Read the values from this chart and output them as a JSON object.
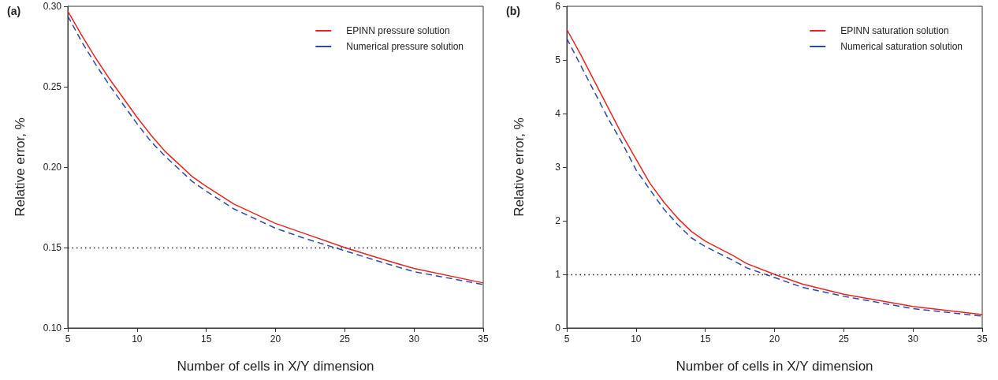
{
  "chart_data": [
    {
      "type": "line",
      "title": "(a)",
      "xlabel": "Number of cells in X/Y dimension",
      "ylabel": "Relative error, %",
      "xlim": [
        5,
        35
      ],
      "xticks": [
        5,
        10,
        15,
        20,
        25,
        30,
        35
      ],
      "ylim": [
        0.1,
        0.3
      ],
      "yticks": [
        {
          "value": 0.1,
          "label": "0.10"
        },
        0.15,
        {
          "value": 0.2,
          "label": "0.20"
        },
        0.25,
        {
          "value": 0.3,
          "label": "0.30"
        }
      ],
      "grid": false,
      "legend": "top right",
      "marker": "none",
      "x": [
        5,
        6,
        7,
        8,
        9,
        10,
        11,
        12,
        13,
        14,
        15,
        17,
        20,
        22,
        25,
        28,
        30,
        35
      ],
      "series": [
        {
          "name": "EPINN pressure solution",
          "color": "#e8251e",
          "line_style": "solid",
          "values": [
            0.297,
            0.282,
            0.268,
            0.255,
            0.243,
            0.231,
            0.22,
            0.21,
            0.202,
            0.194,
            0.188,
            0.177,
            0.165,
            0.159,
            0.15,
            0.142,
            0.137,
            0.128
          ]
        },
        {
          "name": "Numerical pressure solution",
          "color": "#2b4aa8",
          "line_style": "dashed",
          "values": [
            0.294,
            0.278,
            0.264,
            0.251,
            0.239,
            0.227,
            0.216,
            0.207,
            0.199,
            0.191,
            0.185,
            0.174,
            0.162,
            0.156,
            0.148,
            0.14,
            0.135,
            0.127
          ]
        }
      ],
      "ref_lines": [
        {
          "axis": "y",
          "value": 0.15,
          "color": "#222222",
          "line_style": "dotted"
        }
      ]
    },
    {
      "type": "line",
      "title": "(b)",
      "xlabel": "Number of cells in X/Y dimension",
      "ylabel": "Relative error, %",
      "xlim": [
        5,
        35
      ],
      "xticks": [
        5,
        10,
        15,
        20,
        25,
        30,
        35
      ],
      "ylim": [
        0,
        6
      ],
      "yticks": [
        0,
        1,
        2,
        3,
        4,
        5,
        6
      ],
      "grid": false,
      "legend": "top right",
      "marker": "none",
      "x": [
        5,
        6,
        7,
        8,
        9,
        10,
        11,
        12,
        13,
        14,
        15,
        17,
        18,
        20,
        22,
        25,
        30,
        35
      ],
      "series": [
        {
          "name": "EPINN saturation solution",
          "color": "#e8251e",
          "line_style": "solid",
          "values": [
            5.57,
            5.1,
            4.6,
            4.1,
            3.6,
            3.15,
            2.7,
            2.35,
            2.05,
            1.8,
            1.62,
            1.35,
            1.2,
            1.0,
            0.82,
            0.63,
            0.4,
            0.25
          ]
        },
        {
          "name": "Numerical saturation solution",
          "color": "#2b4aa8",
          "line_style": "dashed",
          "values": [
            5.4,
            4.9,
            4.4,
            3.9,
            3.45,
            2.95,
            2.58,
            2.22,
            1.93,
            1.68,
            1.52,
            1.26,
            1.12,
            0.94,
            0.76,
            0.59,
            0.36,
            0.22
          ]
        }
      ],
      "ref_lines": [
        {
          "axis": "y",
          "value": 1,
          "color": "#222222",
          "line_style": "dotted"
        }
      ]
    }
  ]
}
